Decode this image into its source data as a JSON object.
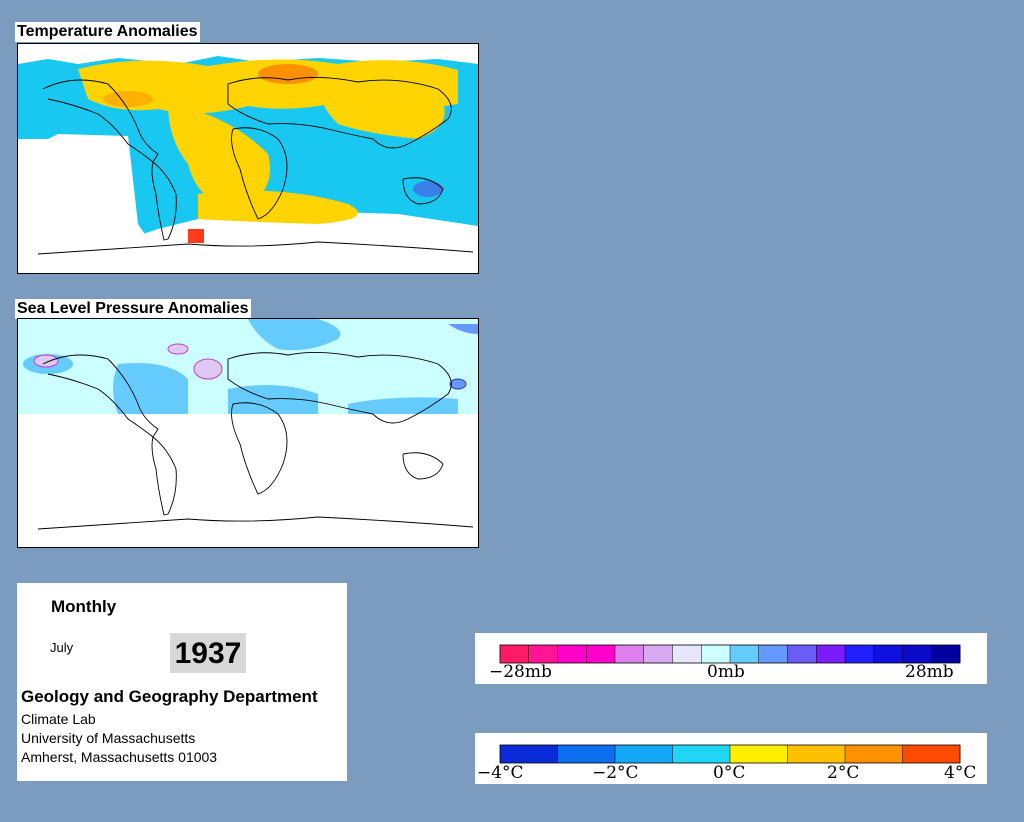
{
  "panels": {
    "temperature": {
      "title": "Temperature Anomalies"
    },
    "pressure": {
      "title": "Sea Level Pressure Anomalies"
    }
  },
  "info": {
    "period": "Monthly",
    "month": "July",
    "year": "1937",
    "department": "Geology and Geography Department",
    "lab": "Climate Lab",
    "university": "University of Massachusetts",
    "address": "Amherst, Massachusetts 01003"
  },
  "legends": {
    "pressure": {
      "min_label": "−28mb",
      "mid_label": "0mb",
      "max_label": "28mb",
      "colors": [
        "#ff1a66",
        "#ff1493",
        "#ff00c8",
        "#ff00cc",
        "#e080ee",
        "#d8a8f0",
        "#e6e6ff",
        "#ccffff",
        "#66ccff",
        "#6699ff",
        "#6a5cf5",
        "#7a1cff",
        "#2020ff",
        "#0f0fe0",
        "#0a0ac8",
        "#0000a0"
      ]
    },
    "temperature": {
      "labels": [
        "−4°C",
        "−2°C",
        "0°C",
        "2°C",
        "4°C"
      ],
      "colors": [
        "#0a2bd8",
        "#0d6ef0",
        "#13a8f5",
        "#1fd6f7",
        "#ffee00",
        "#ffc000",
        "#ff9000",
        "#ff4a00"
      ]
    }
  }
}
